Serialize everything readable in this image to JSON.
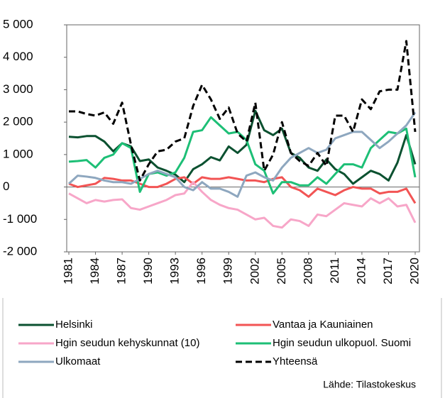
{
  "chart_data": {
    "type": "line",
    "x": [
      1981,
      1982,
      1983,
      1984,
      1985,
      1986,
      1987,
      1988,
      1989,
      1990,
      1991,
      1992,
      1993,
      1994,
      1995,
      1996,
      1997,
      1998,
      1999,
      2000,
      2001,
      2002,
      2003,
      2004,
      2005,
      2006,
      2007,
      2008,
      2009,
      2010,
      2011,
      2012,
      2013,
      2014,
      2015,
      2016,
      2017,
      2018,
      2019,
      2020
    ],
    "xlim": [
      1981,
      2020
    ],
    "xticks": [
      1981,
      1984,
      1987,
      1990,
      1993,
      1996,
      1999,
      2002,
      2005,
      2008,
      2011,
      2014,
      2017,
      2020
    ],
    "ylim": [
      -2000,
      5000
    ],
    "yticks": [
      {
        "value": -2000,
        "label": "-2 000"
      },
      {
        "value": -1000,
        "label": "-1 000"
      },
      0,
      {
        "value": 1000,
        "label": "1 000"
      },
      {
        "value": 2000,
        "label": "2 000"
      },
      {
        "value": 3000,
        "label": "3 000"
      },
      {
        "value": 4000,
        "label": "4 000"
      },
      {
        "value": 5000,
        "label": "5 000"
      }
    ],
    "negative_tick_color": "#ee0000",
    "series": [
      {
        "name": "Helsinki",
        "color": "#0b5130",
        "values": [
          1550,
          1530,
          1570,
          1570,
          1400,
          1100,
          1350,
          1250,
          800,
          850,
          600,
          500,
          380,
          150,
          550,
          700,
          920,
          820,
          1250,
          1050,
          1300,
          2350,
          1750,
          1600,
          1800,
          1050,
          900,
          600,
          500,
          850,
          550,
          400,
          100,
          300,
          500,
          400,
          200,
          750,
          1600,
          700
        ]
      },
      {
        "name": "Vantaa ja Kauniainen",
        "color": "#f25454",
        "values": [
          100,
          0,
          50,
          100,
          280,
          250,
          200,
          200,
          100,
          0,
          0,
          100,
          250,
          300,
          100,
          300,
          250,
          250,
          300,
          250,
          200,
          200,
          150,
          250,
          300,
          0,
          -100,
          -300,
          -50,
          -150,
          -250,
          -100,
          0,
          -50,
          -50,
          -200,
          -150,
          -150,
          -50,
          -500
        ]
      },
      {
        "name": "Hgin seudun kehyskunnat (10)",
        "color": "#f7a6c8",
        "values": [
          -200,
          -350,
          -500,
          -400,
          -450,
          -400,
          -380,
          -650,
          -700,
          -600,
          -500,
          -400,
          -250,
          -200,
          150,
          -150,
          -400,
          -550,
          -650,
          -700,
          -850,
          -1000,
          -950,
          -1200,
          -1250,
          -1000,
          -1050,
          -1200,
          -850,
          -900,
          -700,
          -500,
          -550,
          -600,
          -350,
          -500,
          -350,
          -600,
          -550,
          -1100
        ]
      },
      {
        "name": "Hgin seudun ulkopuol. Suomi",
        "color": "#1dbf76",
        "values": [
          780,
          800,
          830,
          600,
          900,
          1000,
          1350,
          1200,
          -150,
          400,
          450,
          350,
          450,
          900,
          1700,
          1750,
          2150,
          1900,
          1650,
          1700,
          1450,
          700,
          500,
          -200,
          150,
          150,
          50,
          50,
          300,
          100,
          400,
          700,
          700,
          600,
          1200,
          1450,
          1700,
          1650,
          1800,
          300
        ]
      },
      {
        "name": "Ulkomaat",
        "color": "#8ea7bf",
        "values": [
          100,
          350,
          320,
          280,
          200,
          150,
          150,
          100,
          250,
          400,
          500,
          400,
          300,
          0,
          -100,
          150,
          -50,
          -50,
          -150,
          -300,
          350,
          450,
          300,
          200,
          600,
          900,
          1050,
          1200,
          1050,
          1150,
          1500,
          1600,
          1700,
          1700,
          1450,
          1200,
          1400,
          1650,
          1900,
          2300
        ]
      },
      {
        "name": "Yhteensä",
        "color": "#000000",
        "dashed": true,
        "values": [
          2330,
          2330,
          2250,
          2200,
          2300,
          1950,
          2600,
          1300,
          200,
          700,
          1100,
          1150,
          1400,
          1500,
          2500,
          3150,
          2700,
          2100,
          2450,
          1650,
          1400,
          2600,
          500,
          1000,
          2000,
          1050,
          800,
          650,
          1050,
          650,
          2200,
          2200,
          1700,
          2700,
          2400,
          2950,
          3000,
          3000,
          4500,
          1700
        ]
      }
    ],
    "source": "Lähde: Tilastokeskus"
  }
}
